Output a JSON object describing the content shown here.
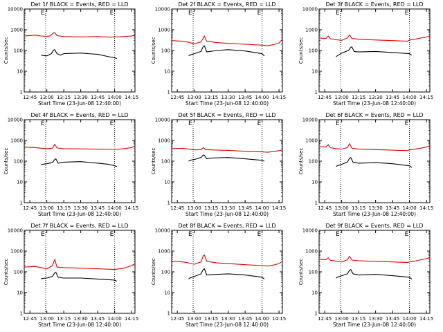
{
  "figure": {
    "xtick_labels": [
      "12:45",
      "13:00",
      "13:15",
      "13:30",
      "13:45",
      "14:00",
      "14:15"
    ],
    "y_ticks": [
      1,
      10,
      100,
      1000,
      10000
    ],
    "y_tick_labels": [
      "1",
      "10",
      "100",
      "1000",
      "10000"
    ],
    "xlabel": "Start Time (23-Jun-08 12:40:00)",
    "ylabel": "Counts/sec",
    "colors": {
      "events": "#000000",
      "lld": "#e00000",
      "axes": "#000000"
    }
  },
  "chart_data": [
    {
      "type": "line",
      "title": "Det 1f BLACK = Events, RED = LLD",
      "xlim": [
        "12:40",
        "14:18"
      ],
      "ylim": [
        1,
        10000
      ],
      "ylog": true,
      "markers": [
        "12:59",
        "14:00"
      ],
      "marker_labels": [
        "E",
        "E"
      ],
      "series": [
        {
          "x": [
            "12:40",
            "12:50",
            "12:55",
            "13:00",
            "13:03",
            "13:06",
            "13:07",
            "13:09",
            "13:15",
            "13:30",
            "13:45",
            "13:55",
            "14:00",
            "14:05",
            "14:10",
            "14:15",
            "14:18"
          ],
          "y": [
            500,
            550,
            500,
            480,
            510,
            700,
            720,
            520,
            470,
            450,
            470,
            440,
            450,
            460,
            480,
            500,
            550
          ]
        },
        {
          "x": [
            "12:55",
            "12:56",
            "13:00",
            "13:04",
            "13:06",
            "13:07",
            "13:09",
            "13:12",
            "13:15",
            "13:30",
            "13:45",
            "13:55",
            "14:00",
            "14:02"
          ],
          "y": [
            60,
            58,
            55,
            70,
            105,
            110,
            70,
            60,
            70,
            75,
            65,
            50,
            45,
            40
          ]
        }
      ]
    },
    {
      "type": "line",
      "title": "Det 2f BLACK = Events, RED = LLD",
      "xlim": [
        "12:40",
        "14:18"
      ],
      "ylim": [
        1,
        10000
      ],
      "ylog": true,
      "markers": [
        "12:59",
        "14:00"
      ],
      "marker_labels": [
        "E",
        "E"
      ],
      "series": [
        {
          "x": [
            "12:40",
            "12:50",
            "12:55",
            "13:00",
            "13:06",
            "13:08",
            "13:09",
            "13:11",
            "13:20",
            "13:30",
            "13:45",
            "14:00",
            "14:05",
            "14:10",
            "14:15",
            "14:18"
          ],
          "y": [
            300,
            280,
            250,
            210,
            260,
            400,
            500,
            280,
            240,
            220,
            200,
            180,
            170,
            190,
            230,
            350
          ]
        },
        {
          "x": [
            "12:55",
            "12:56",
            "13:00",
            "13:06",
            "13:08",
            "13:09",
            "13:11",
            "13:20",
            "13:30",
            "13:45",
            "14:00",
            "14:02"
          ],
          "y": [
            55,
            60,
            70,
            90,
            160,
            170,
            85,
            100,
            110,
            95,
            70,
            55
          ]
        }
      ]
    },
    {
      "type": "line",
      "title": "Det 3f BLACK = Events, RED = LLD",
      "xlim": [
        "12:40",
        "14:18"
      ],
      "ylim": [
        1,
        10000
      ],
      "ylog": true,
      "markers": [
        "12:59",
        "14:00"
      ],
      "marker_labels": [
        "E",
        "E"
      ],
      "series": [
        {
          "x": [
            "12:40",
            "12:46",
            "12:48",
            "12:50",
            "12:55",
            "13:00",
            "13:05",
            "13:07",
            "13:09",
            "13:15",
            "13:30",
            "13:45",
            "13:58",
            "14:00",
            "14:05",
            "14:10",
            "14:15",
            "14:18"
          ],
          "y": [
            400,
            380,
            500,
            370,
            330,
            310,
            400,
            560,
            380,
            350,
            320,
            300,
            280,
            320,
            350,
            400,
            450,
            500
          ]
        },
        {
          "x": [
            "12:55",
            "12:56",
            "13:00",
            "13:06",
            "13:08",
            "13:09",
            "13:11",
            "13:15",
            "13:30",
            "13:45",
            "14:00",
            "14:02"
          ],
          "y": [
            50,
            55,
            75,
            100,
            140,
            150,
            90,
            85,
            90,
            80,
            70,
            60
          ]
        }
      ]
    },
    {
      "type": "line",
      "title": "Det 4f BLACK = Events, RED = LLD",
      "xlim": [
        "12:40",
        "14:18"
      ],
      "ylim": [
        1,
        10000
      ],
      "ylog": true,
      "markers": [
        "12:59",
        "14:00"
      ],
      "marker_labels": [
        "E",
        "E"
      ],
      "series": [
        {
          "x": [
            "12:40",
            "12:50",
            "12:55",
            "13:00",
            "13:05",
            "13:07",
            "13:09",
            "13:15",
            "13:30",
            "13:45",
            "14:00",
            "14:05",
            "14:10",
            "14:15",
            "14:18"
          ],
          "y": [
            480,
            450,
            420,
            400,
            420,
            650,
            430,
            400,
            390,
            380,
            370,
            380,
            410,
            450,
            550
          ]
        },
        {
          "x": [
            "12:55",
            "12:56",
            "13:00",
            "13:05",
            "13:07",
            "13:08",
            "13:10",
            "13:15",
            "13:30",
            "13:45",
            "13:55",
            "14:00",
            "14:02"
          ],
          "y": [
            65,
            70,
            75,
            85,
            120,
            130,
            80,
            90,
            95,
            80,
            70,
            60,
            55
          ]
        }
      ]
    },
    {
      "type": "line",
      "title": "Det 5f BLACK = Events, RED = LLD",
      "xlim": [
        "12:40",
        "14:18"
      ],
      "ylim": [
        1,
        10000
      ],
      "ylog": true,
      "markers": [
        "12:59",
        "14:00"
      ],
      "marker_labels": [
        "E",
        "E"
      ],
      "series": [
        {
          "x": [
            "12:40",
            "12:50",
            "12:55",
            "13:00",
            "13:06",
            "13:08",
            "13:10",
            "13:15",
            "13:30",
            "13:45",
            "14:00",
            "14:05",
            "14:10",
            "14:15",
            "14:18"
          ],
          "y": [
            400,
            420,
            380,
            350,
            360,
            450,
            360,
            350,
            330,
            300,
            280,
            270,
            290,
            320,
            350
          ]
        },
        {
          "x": [
            "12:55",
            "12:56",
            "13:00",
            "13:06",
            "13:08",
            "13:09",
            "13:11",
            "13:15",
            "13:30",
            "13:45",
            "14:00",
            "14:02"
          ],
          "y": [
            100,
            110,
            120,
            150,
            200,
            190,
            130,
            140,
            150,
            130,
            110,
            100
          ]
        }
      ]
    },
    {
      "type": "line",
      "title": "Det 6f BLACK = Events, RED = LLD",
      "xlim": [
        "12:40",
        "14:18"
      ],
      "ylim": [
        1,
        10000
      ],
      "ylog": true,
      "markers": [
        "12:59",
        "14:00"
      ],
      "marker_labels": [
        "E",
        "E"
      ],
      "series": [
        {
          "x": [
            "12:40",
            "12:46",
            "12:48",
            "12:50",
            "12:55",
            "13:00",
            "13:05",
            "13:07",
            "13:09",
            "13:15",
            "13:30",
            "13:45",
            "13:58",
            "14:00",
            "14:05",
            "14:10",
            "14:15",
            "14:18"
          ],
          "y": [
            500,
            480,
            620,
            450,
            400,
            380,
            450,
            700,
            420,
            380,
            360,
            340,
            320,
            350,
            380,
            420,
            480,
            550
          ]
        },
        {
          "x": [
            "12:55",
            "12:56",
            "13:00",
            "13:05",
            "13:07",
            "13:08",
            "13:10",
            "13:15",
            "13:30",
            "13:45",
            "14:00",
            "14:02"
          ],
          "y": [
            55,
            60,
            70,
            90,
            140,
            150,
            90,
            80,
            85,
            75,
            60,
            50
          ]
        }
      ]
    },
    {
      "type": "line",
      "title": "Det 7f BLACK = Events, RED = LLD",
      "xlim": [
        "12:40",
        "14:18"
      ],
      "ylim": [
        1,
        10000
      ],
      "ylog": true,
      "markers": [
        "12:59",
        "14:00"
      ],
      "marker_labels": [
        "E",
        "E"
      ],
      "series": [
        {
          "x": [
            "12:40",
            "12:50",
            "12:55",
            "13:00",
            "13:05",
            "13:07",
            "13:09",
            "13:15",
            "13:30",
            "13:45",
            "14:00",
            "14:05",
            "14:10",
            "14:15",
            "14:18"
          ],
          "y": [
            170,
            180,
            160,
            140,
            200,
            400,
            170,
            160,
            150,
            140,
            130,
            140,
            160,
            200,
            250
          ]
        },
        {
          "x": [
            "12:55",
            "12:56",
            "13:00",
            "13:05",
            "13:07",
            "13:08",
            "13:10",
            "13:15",
            "13:30",
            "13:45",
            "14:00",
            "14:02"
          ],
          "y": [
            45,
            48,
            50,
            60,
            90,
            95,
            55,
            50,
            50,
            45,
            40,
            35
          ]
        }
      ]
    },
    {
      "type": "line",
      "title": "Det 8f BLACK = Events, RED = LLD",
      "xlim": [
        "12:40",
        "14:18"
      ],
      "ylim": [
        1,
        10000
      ],
      "ylog": true,
      "markers": [
        "12:59",
        "14:00"
      ],
      "marker_labels": [
        "E",
        "E"
      ],
      "series": [
        {
          "x": [
            "12:40",
            "12:50",
            "12:55",
            "13:00",
            "13:06",
            "13:08",
            "13:09",
            "13:11",
            "13:20",
            "13:30",
            "13:45",
            "14:00",
            "14:05",
            "14:10",
            "14:15",
            "14:18"
          ],
          "y": [
            320,
            300,
            270,
            230,
            300,
            600,
            650,
            320,
            270,
            250,
            220,
            200,
            190,
            210,
            250,
            320
          ]
        },
        {
          "x": [
            "12:55",
            "12:56",
            "13:00",
            "13:06",
            "13:08",
            "13:09",
            "13:11",
            "13:20",
            "13:30",
            "13:45",
            "14:00",
            "14:02"
          ],
          "y": [
            45,
            50,
            60,
            80,
            130,
            140,
            70,
            75,
            80,
            70,
            55,
            45
          ]
        }
      ]
    },
    {
      "type": "line",
      "title": "Det 9f BLACK = Events, RED = LLD",
      "xlim": [
        "12:40",
        "14:18"
      ],
      "ylim": [
        1,
        10000
      ],
      "ylog": true,
      "markers": [
        "12:59",
        "14:00"
      ],
      "marker_labels": [
        "E",
        "E"
      ],
      "series": [
        {
          "x": [
            "12:40",
            "12:46",
            "12:48",
            "12:50",
            "12:55",
            "13:00",
            "13:05",
            "13:07",
            "13:09",
            "13:15",
            "13:30",
            "13:45",
            "13:58",
            "14:00",
            "14:05",
            "14:10",
            "14:15",
            "14:18"
          ],
          "y": [
            400,
            380,
            480,
            360,
            330,
            300,
            380,
            560,
            370,
            340,
            320,
            300,
            280,
            300,
            330,
            380,
            430,
            480
          ]
        },
        {
          "x": [
            "12:55",
            "12:56",
            "13:00",
            "13:05",
            "13:07",
            "13:08",
            "13:10",
            "13:15",
            "13:30",
            "13:45",
            "14:00",
            "14:02"
          ],
          "y": [
            50,
            55,
            65,
            80,
            120,
            130,
            80,
            70,
            75,
            65,
            55,
            45
          ]
        }
      ]
    }
  ]
}
